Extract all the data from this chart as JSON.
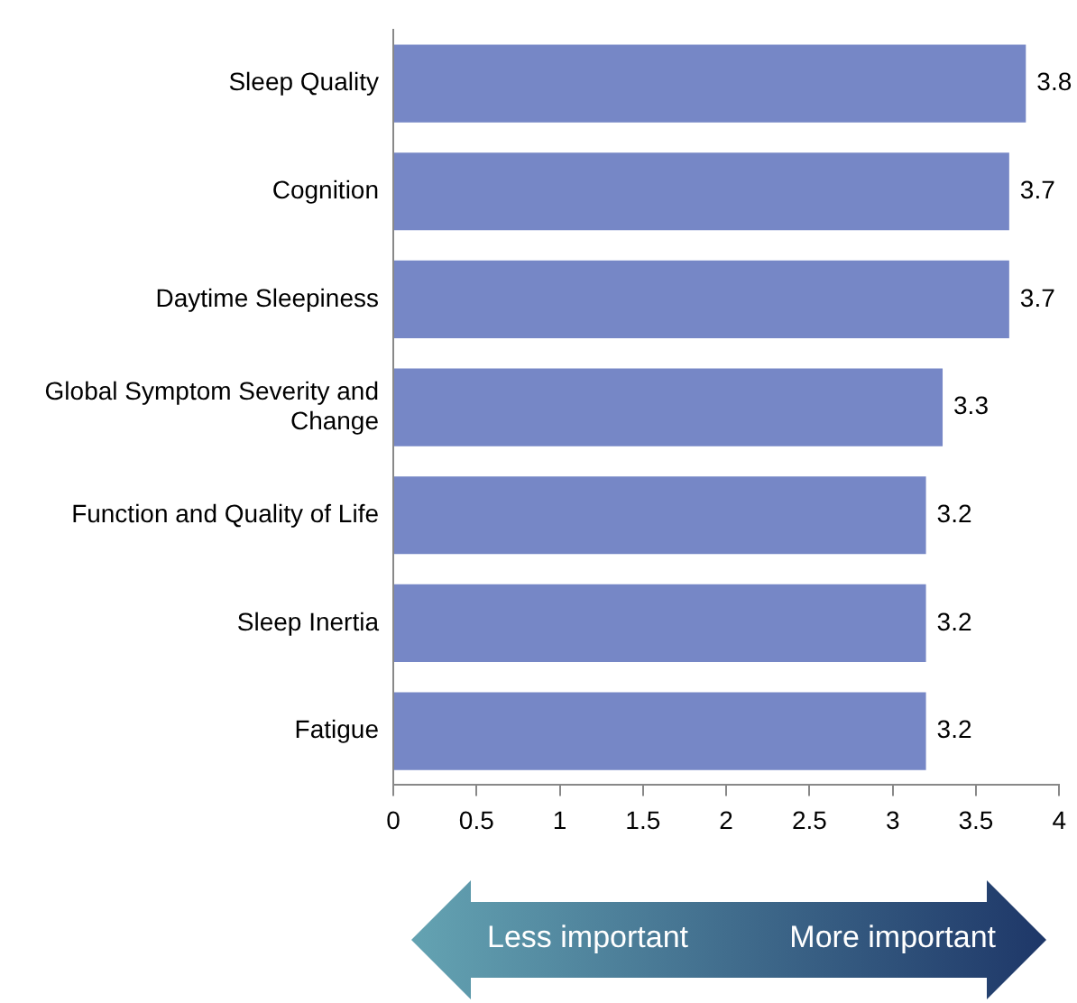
{
  "chart_data": {
    "type": "bar",
    "orientation": "horizontal",
    "categories": [
      "Sleep Quality",
      "Cognition",
      "Daytime Sleepiness",
      "Global Symptom Severity and Change",
      "Function and Quality of Life",
      "Sleep Inertia",
      "Fatigue"
    ],
    "values": [
      3.8,
      3.7,
      3.7,
      3.3,
      3.2,
      3.2,
      3.2
    ],
    "color": "#7687c6",
    "xlim": [
      0,
      4
    ],
    "xticks": [
      0,
      0.5,
      1,
      1.5,
      2,
      2.5,
      3,
      3.5,
      4
    ],
    "grid": false,
    "legend": false,
    "data_labels": true,
    "annotations": [
      "Less important",
      "More important"
    ]
  }
}
